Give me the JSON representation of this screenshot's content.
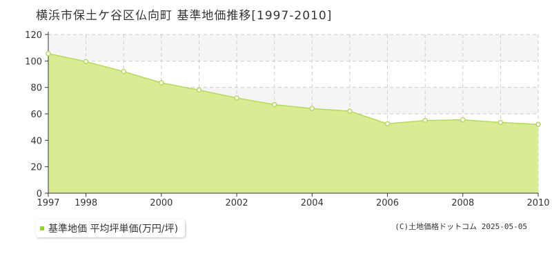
{
  "chart": {
    "title": "横浜市保土ケ谷区仏向町 基準地価推移[1997-2010]",
    "legend_label": "基準地価 平均坪単価(万円/坪)",
    "copyright": "(C)土地価格ドットコム 2025-05-05"
  },
  "colors": {
    "fill": "#d9ec94",
    "line": "#b5d95a",
    "marker_fill": "#ffffff",
    "grid": "#cccccc",
    "band": "#f5f5f5",
    "legend_swatch": "#9acd32"
  },
  "chart_data": {
    "type": "area",
    "title": "横浜市保土ケ谷区仏向町 基準地価推移[1997-2010]",
    "xlabel": "",
    "ylabel": "",
    "x": [
      1997,
      1998,
      1999,
      2000,
      2001,
      2002,
      2003,
      2004,
      2005,
      2006,
      2007,
      2008,
      2009,
      2010
    ],
    "series": [
      {
        "name": "基準地価 平均坪単価(万円/坪)",
        "values": [
          105.5,
          99.5,
          92,
          83.5,
          78,
          72,
          67,
          64,
          62,
          52.5,
          55,
          55.5,
          53.5,
          52
        ]
      }
    ],
    "xlim": [
      1997,
      2010
    ],
    "ylim": [
      0,
      120
    ],
    "x_ticks": [
      "1997",
      "1998",
      "2000",
      "2002",
      "2004",
      "2006",
      "2008",
      "2010"
    ],
    "y_ticks": [
      "0",
      "20",
      "40",
      "60",
      "80",
      "100",
      "120"
    ],
    "grid": true,
    "legend_position": "bottom-left"
  }
}
